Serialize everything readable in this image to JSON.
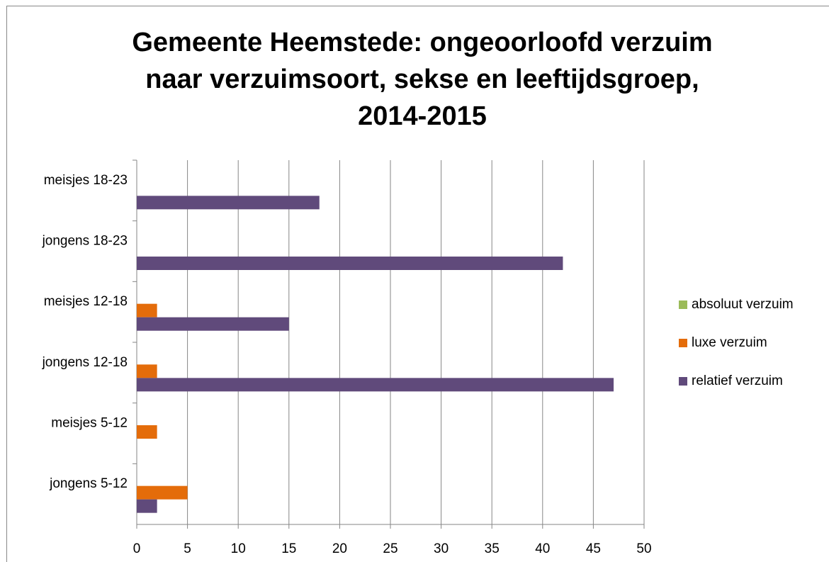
{
  "chart_data": {
    "type": "hbar",
    "title": [
      "Gemeente Heemstede: ongeoorloofd verzuim",
      "naar verzuimsoort, sekse en leeftijdsgroep,",
      "2014-2015"
    ],
    "categories": [
      "jongens 5-12",
      "meisjes 5-12",
      "jongens 12-18",
      "meisjes 12-18",
      "jongens 18-23",
      "meisjes 18-23"
    ],
    "series": [
      {
        "name": "absoluut verzuim",
        "color": "#9bbb59",
        "values": [
          0,
          0,
          0,
          0,
          0,
          0
        ]
      },
      {
        "name": "luxe verzuim",
        "color": "#e46c0a",
        "values": [
          5,
          2,
          2,
          2,
          0,
          0
        ]
      },
      {
        "name": "relatief verzuim",
        "color": "#604a7b",
        "values": [
          2,
          0,
          47,
          15,
          42,
          18
        ]
      }
    ],
    "xlim": [
      0,
      50
    ],
    "xticks": [
      0,
      5,
      10,
      15,
      20,
      25,
      30,
      35,
      40,
      45,
      50
    ],
    "grid": true,
    "legend": "right"
  }
}
